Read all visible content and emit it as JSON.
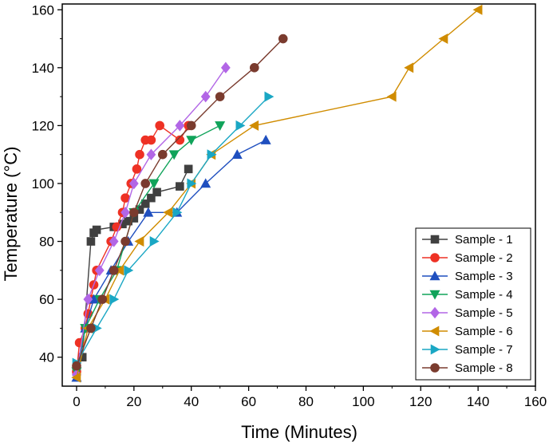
{
  "chart_data": {
    "type": "line",
    "title": "",
    "xlabel": "Time (Minutes)",
    "ylabel": "Temperature (°C)",
    "xlim": [
      -5,
      160
    ],
    "ylim": [
      30,
      162
    ],
    "xticks": [
      0,
      20,
      40,
      60,
      80,
      100,
      120,
      140,
      160
    ],
    "yticks": [
      40,
      60,
      80,
      100,
      120,
      140,
      160
    ],
    "legend_position": "bottom-right",
    "series": [
      {
        "name": "Sample - 1",
        "color": "#404040",
        "marker": "square",
        "x": [
          0,
          2,
          5,
          6,
          7,
          13,
          16,
          18,
          20,
          22,
          24,
          26,
          28,
          36,
          39
        ],
        "y": [
          35,
          40,
          80,
          83,
          84,
          85,
          86,
          87,
          88,
          91,
          93,
          95,
          97,
          99,
          105
        ]
      },
      {
        "name": "Sample - 2",
        "color": "#ee3124",
        "marker": "circle",
        "x": [
          0,
          1,
          3,
          4,
          5,
          6,
          7,
          12,
          14,
          16,
          17,
          19,
          21,
          22,
          24,
          26,
          29,
          36,
          39
        ],
        "y": [
          35,
          45,
          50,
          55,
          60,
          65,
          70,
          80,
          85,
          90,
          95,
          100,
          105,
          110,
          115,
          115,
          120,
          115,
          120
        ]
      },
      {
        "name": "Sample - 3",
        "color": "#1f4fbf",
        "marker": "triangle-up",
        "x": [
          0,
          3,
          6,
          12,
          18,
          25,
          35,
          45,
          56,
          66
        ],
        "y": [
          33,
          50,
          60,
          70,
          80,
          90,
          90,
          100,
          110,
          115
        ]
      },
      {
        "name": "Sample - 4",
        "color": "#10a35a",
        "marker": "triangle-down",
        "x": [
          0,
          3,
          8,
          14,
          20,
          27,
          34,
          40,
          50
        ],
        "y": [
          35,
          50,
          60,
          70,
          90,
          100,
          110,
          115,
          120
        ]
      },
      {
        "name": "Sample - 5",
        "color": "#b266e6",
        "marker": "diamond",
        "x": [
          0,
          4,
          8,
          13,
          17,
          20,
          26,
          36,
          45,
          52
        ],
        "y": [
          34,
          60,
          70,
          80,
          90,
          100,
          110,
          120,
          130,
          140
        ]
      },
      {
        "name": "Sample - 6",
        "color": "#d08c00",
        "marker": "triangle-left",
        "x": [
          0,
          4,
          10,
          15,
          22,
          32,
          40,
          47,
          62,
          110,
          116,
          128,
          140
        ],
        "y": [
          33,
          50,
          60,
          70,
          80,
          90,
          100,
          110,
          120,
          130,
          140,
          150,
          160
        ]
      },
      {
        "name": "Sample - 7",
        "color": "#1aa7c4",
        "marker": "triangle-right",
        "x": [
          0,
          7,
          13,
          18,
          27,
          35,
          40,
          47,
          57,
          67
        ],
        "y": [
          38,
          50,
          60,
          70,
          80,
          90,
          100,
          110,
          120,
          130
        ]
      },
      {
        "name": "Sample - 8",
        "color": "#7a3b2e",
        "marker": "circle",
        "x": [
          0,
          5,
          9,
          13,
          17,
          20,
          24,
          30,
          40,
          50,
          62,
          72
        ],
        "y": [
          37,
          50,
          60,
          70,
          80,
          90,
          100,
          110,
          120,
          130,
          140,
          150
        ]
      }
    ]
  }
}
